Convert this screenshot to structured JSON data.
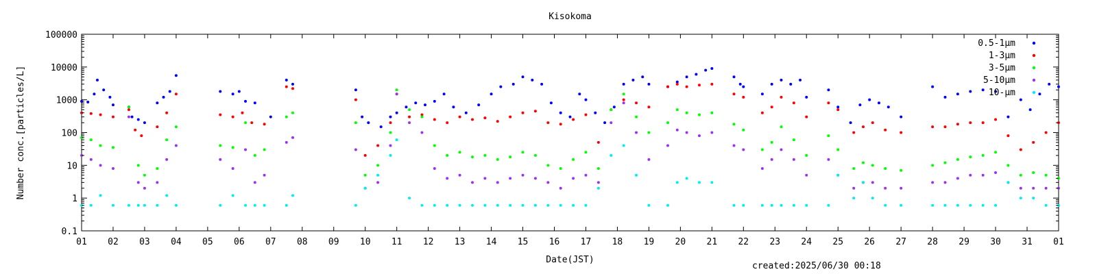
{
  "chart_data": {
    "type": "scatter",
    "title": "Kisokoma",
    "xlabel": "Date(JST)",
    "ylabel": "Number conc.[particles/L]",
    "y_scale": "log",
    "ylim": [
      0.1,
      100000
    ],
    "xlim": [
      1,
      32
    ],
    "x_tick_labels": [
      "01",
      "02",
      "03",
      "04",
      "05",
      "06",
      "07",
      "08",
      "09",
      "10",
      "11",
      "12",
      "13",
      "14",
      "15",
      "16",
      "17",
      "18",
      "19",
      "20",
      "21",
      "22",
      "23",
      "24",
      "25",
      "26",
      "27",
      "28",
      "29",
      "30",
      "31",
      "01"
    ],
    "y_tick_labels": [
      "0.1",
      "1",
      "10",
      "100",
      "1000",
      "10000",
      "100000"
    ],
    "grid": false,
    "legend_position": "top-right",
    "series": [
      {
        "name": "0.5-1μm",
        "color": "#0000ff",
        "x": [
          1.0,
          1.2,
          1.4,
          1.5,
          1.7,
          1.9,
          2.0,
          2.5,
          2.6,
          2.8,
          3.0,
          3.4,
          3.6,
          3.8,
          4.0,
          5.4,
          5.8,
          6.0,
          6.2,
          6.5,
          7.0,
          7.5,
          7.7,
          9.7,
          9.9,
          10.1,
          10.5,
          10.8,
          11.0,
          11.3,
          11.6,
          11.9,
          12.2,
          12.5,
          12.8,
          13.2,
          13.6,
          14.0,
          14.3,
          14.7,
          15.0,
          15.3,
          15.6,
          15.9,
          16.2,
          16.5,
          16.8,
          17.0,
          17.3,
          17.6,
          17.9,
          18.2,
          18.5,
          18.8,
          19.0,
          19.6,
          19.9,
          20.2,
          20.5,
          20.8,
          21.0,
          21.7,
          21.9,
          22.0,
          22.6,
          22.9,
          23.2,
          23.5,
          23.8,
          24.0,
          24.7,
          25.0,
          25.4,
          25.7,
          26.0,
          26.3,
          26.6,
          27.0,
          28.0,
          28.4,
          28.8,
          29.2,
          29.6,
          30.0,
          30.4,
          30.8,
          31.1,
          31.4,
          31.7,
          32.0
        ],
        "y": [
          900,
          850,
          1500,
          4000,
          2000,
          1200,
          700,
          600,
          300,
          250,
          200,
          800,
          1200,
          1800,
          5500,
          1800,
          1500,
          1800,
          900,
          800,
          300,
          4000,
          3000,
          2000,
          300,
          200,
          150,
          300,
          400,
          600,
          800,
          700,
          900,
          1500,
          600,
          400,
          700,
          1500,
          2500,
          3000,
          5000,
          4000,
          3000,
          800,
          400,
          300,
          1500,
          1000,
          400,
          200,
          600,
          3000,
          4000,
          5000,
          3000,
          2500,
          3500,
          5000,
          6000,
          8000,
          9000,
          5000,
          3000,
          2500,
          1500,
          3000,
          4000,
          3000,
          4000,
          1200,
          2000,
          600,
          200,
          700,
          1000,
          800,
          600,
          300,
          2500,
          1200,
          1500,
          1800,
          2000,
          1800,
          300,
          1000,
          500,
          1500,
          3000,
          2500
        ]
      },
      {
        "name": "1-3μm",
        "color": "#ff0000",
        "x": [
          1.0,
          1.3,
          1.6,
          2.0,
          2.5,
          2.7,
          2.9,
          3.4,
          3.7,
          4.0,
          5.4,
          5.8,
          6.1,
          6.4,
          6.8,
          7.5,
          7.7,
          9.7,
          10.0,
          10.4,
          10.8,
          11.0,
          11.4,
          11.8,
          12.2,
          12.6,
          13.0,
          13.4,
          13.8,
          14.2,
          14.6,
          15.0,
          15.4,
          15.8,
          16.2,
          16.6,
          17.0,
          17.4,
          17.8,
          18.2,
          18.6,
          19.0,
          19.6,
          19.9,
          20.2,
          20.6,
          21.0,
          21.7,
          22.0,
          22.6,
          22.9,
          23.2,
          23.6,
          24.0,
          24.7,
          25.0,
          25.5,
          25.8,
          26.1,
          26.5,
          27.0,
          28.0,
          28.4,
          28.8,
          29.2,
          29.6,
          30.0,
          30.4,
          30.8,
          31.2,
          31.6,
          32.0
        ],
        "y": [
          400,
          380,
          350,
          300,
          500,
          120,
          80,
          150,
          400,
          1500,
          350,
          300,
          400,
          200,
          180,
          2500,
          2200,
          1000,
          20,
          40,
          200,
          1500,
          300,
          350,
          250,
          200,
          300,
          250,
          280,
          220,
          300,
          400,
          450,
          200,
          180,
          250,
          350,
          50,
          500,
          1000,
          800,
          600,
          2500,
          3000,
          2500,
          2800,
          3000,
          1500,
          1200,
          400,
          600,
          1200,
          800,
          300,
          800,
          500,
          100,
          150,
          200,
          120,
          100,
          150,
          150,
          180,
          200,
          200,
          250,
          80,
          30,
          50,
          100,
          200
        ]
      },
      {
        "name": "3-5μm",
        "color": "#00ff00",
        "x": [
          1.0,
          1.3,
          1.6,
          2.0,
          2.5,
          2.8,
          3.0,
          3.4,
          3.7,
          4.0,
          5.4,
          5.8,
          6.2,
          6.5,
          6.8,
          7.5,
          7.7,
          9.7,
          10.0,
          10.4,
          10.8,
          11.0,
          11.4,
          11.8,
          12.2,
          12.6,
          13.0,
          13.4,
          13.8,
          14.2,
          14.6,
          15.0,
          15.4,
          15.8,
          16.2,
          16.6,
          17.0,
          17.4,
          17.8,
          18.2,
          18.6,
          19.0,
          19.6,
          19.9,
          20.2,
          20.6,
          21.0,
          21.7,
          22.0,
          22.6,
          22.9,
          23.2,
          23.6,
          24.0,
          24.7,
          25.0,
          25.5,
          25.8,
          26.1,
          26.5,
          27.0,
          28.0,
          28.4,
          28.8,
          29.2,
          29.6,
          30.0,
          30.4,
          30.8,
          31.2,
          31.6,
          32.0
        ],
        "y": [
          70,
          60,
          40,
          35,
          600,
          10,
          5,
          8,
          60,
          150,
          40,
          35,
          200,
          20,
          30,
          300,
          400,
          200,
          5,
          10,
          100,
          2000,
          500,
          300,
          40,
          20,
          25,
          18,
          20,
          15,
          18,
          25,
          20,
          10,
          8,
          15,
          25,
          8,
          500,
          1500,
          300,
          100,
          200,
          500,
          400,
          350,
          400,
          180,
          120,
          30,
          50,
          150,
          60,
          20,
          80,
          30,
          8,
          12,
          10,
          8,
          7,
          10,
          12,
          15,
          18,
          20,
          25,
          10,
          5,
          6,
          5,
          4
        ]
      },
      {
        "name": "5-10μm",
        "color": "#9933ee",
        "x": [
          1.0,
          1.3,
          1.6,
          2.0,
          2.5,
          2.8,
          3.0,
          3.4,
          3.7,
          4.0,
          5.4,
          5.8,
          6.2,
          6.5,
          6.8,
          7.5,
          7.7,
          9.7,
          10.0,
          10.4,
          10.8,
          11.0,
          11.4,
          11.8,
          12.2,
          12.6,
          13.0,
          13.4,
          13.8,
          14.2,
          14.6,
          15.0,
          15.4,
          15.8,
          16.2,
          16.6,
          17.0,
          17.4,
          17.8,
          18.2,
          18.6,
          19.0,
          19.6,
          19.9,
          20.2,
          20.6,
          21.0,
          21.7,
          22.0,
          22.6,
          22.9,
          23.2,
          23.6,
          24.0,
          24.7,
          25.0,
          25.5,
          25.8,
          26.1,
          26.5,
          27.0,
          28.0,
          28.4,
          28.8,
          29.2,
          29.6,
          30.0,
          30.4,
          30.8,
          31.2,
          31.6,
          32.0
        ],
        "y": [
          20,
          15,
          10,
          8,
          300,
          3,
          2,
          3,
          15,
          40,
          15,
          8,
          30,
          3,
          5,
          50,
          70,
          30,
          2,
          3,
          40,
          1500,
          200,
          100,
          8,
          4,
          5,
          3,
          4,
          3,
          4,
          5,
          4,
          3,
          2,
          4,
          5,
          3,
          200,
          800,
          100,
          15,
          40,
          120,
          100,
          80,
          100,
          40,
          30,
          8,
          15,
          30,
          15,
          5,
          15,
          5,
          2,
          3,
          3,
          2,
          2,
          3,
          3,
          4,
          5,
          5,
          6,
          3,
          2,
          2,
          2,
          2
        ]
      },
      {
        "name": "10-μm",
        "color": "#00eeee",
        "x": [
          1.0,
          1.3,
          1.6,
          2.0,
          2.5,
          2.8,
          3.0,
          3.4,
          3.7,
          4.0,
          5.4,
          5.8,
          6.2,
          6.5,
          6.8,
          7.5,
          7.7,
          9.7,
          10.0,
          10.4,
          10.8,
          11.0,
          11.4,
          11.8,
          12.2,
          12.6,
          13.0,
          13.4,
          13.8,
          14.2,
          14.6,
          15.0,
          15.4,
          15.8,
          16.2,
          16.6,
          17.0,
          17.4,
          17.8,
          18.2,
          18.6,
          19.0,
          19.6,
          19.9,
          20.2,
          20.6,
          21.0,
          21.7,
          22.0,
          22.6,
          22.9,
          23.2,
          23.6,
          24.0,
          24.7,
          25.0,
          25.5,
          25.8,
          26.1,
          26.5,
          27.0,
          28.0,
          28.4,
          28.8,
          29.2,
          29.6,
          30.0,
          30.4,
          30.8,
          31.2,
          31.6,
          32.0
        ],
        "y": [
          0.6,
          0.6,
          1.2,
          0.6,
          0.6,
          0.6,
          0.6,
          0.6,
          1.2,
          0.6,
          0.6,
          1.2,
          0.6,
          0.6,
          0.6,
          0.6,
          1.2,
          0.6,
          2,
          5,
          20,
          60,
          1,
          0.6,
          0.6,
          0.6,
          0.6,
          0.6,
          0.6,
          0.6,
          0.6,
          0.6,
          0.6,
          0.6,
          0.6,
          0.6,
          0.6,
          2,
          20,
          40,
          5,
          0.6,
          0.6,
          3,
          4,
          3,
          3,
          0.6,
          0.6,
          0.6,
          0.6,
          0.6,
          0.6,
          0.6,
          0.6,
          5,
          1,
          3,
          1,
          0.6,
          0.6,
          0.6,
          0.6,
          0.6,
          0.6,
          0.6,
          0.6,
          3,
          1,
          1,
          0.6,
          0.6
        ]
      }
    ]
  },
  "footer": {
    "created": "created:2025/06/30 00:18"
  }
}
